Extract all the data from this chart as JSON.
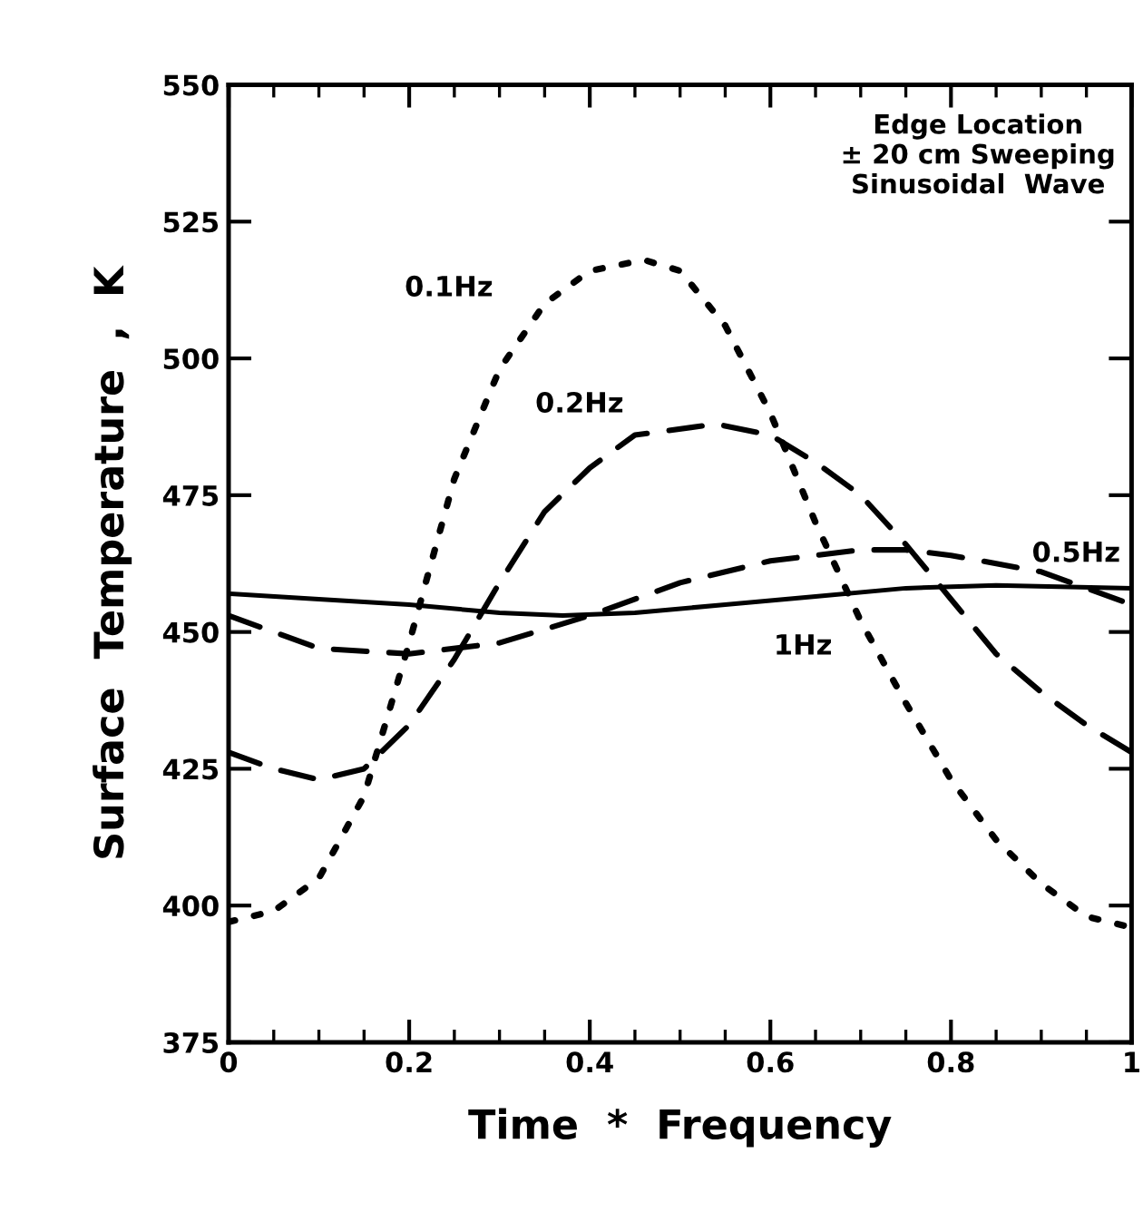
{
  "chart_data": {
    "type": "line",
    "xlabel": "Time  *  Frequency",
    "ylabel": "Surface  Temperature  ,  K",
    "xlim": [
      0,
      1
    ],
    "ylim": [
      375,
      550
    ],
    "xticks": [
      0,
      0.2,
      0.4,
      0.6,
      0.8,
      1
    ],
    "yticks": [
      375,
      400,
      425,
      450,
      475,
      500,
      525,
      550
    ],
    "grid": false,
    "series": [
      {
        "name": "0.1Hz",
        "color": "#000000",
        "line_style": "dotted",
        "x": [
          0,
          0.05,
          0.1,
          0.15,
          0.2,
          0.25,
          0.3,
          0.35,
          0.4,
          0.46,
          0.5,
          0.55,
          0.6,
          0.65,
          0.7,
          0.75,
          0.8,
          0.85,
          0.9,
          0.95,
          1
        ],
        "values": [
          397,
          399,
          405,
          420,
          448,
          478,
          498,
          510,
          516,
          518,
          516,
          506,
          490,
          470,
          452,
          437,
          423,
          412,
          404,
          398,
          396
        ]
      },
      {
        "name": "0.2Hz",
        "color": "#000000",
        "line_style": "dashed",
        "x": [
          0,
          0.05,
          0.1,
          0.15,
          0.2,
          0.25,
          0.3,
          0.35,
          0.4,
          0.45,
          0.54,
          0.6,
          0.65,
          0.7,
          0.75,
          0.8,
          0.85,
          0.9,
          0.95,
          1
        ],
        "values": [
          428,
          425,
          423,
          425,
          433,
          445,
          459,
          472,
          480,
          486,
          488,
          486,
          481,
          475,
          466,
          456,
          446,
          439,
          433,
          428
        ]
      },
      {
        "name": "0.5Hz",
        "color": "#000000",
        "line_style": "dashed",
        "x": [
          0,
          0.05,
          0.1,
          0.2,
          0.3,
          0.4,
          0.5,
          0.6,
          0.7,
          0.75,
          0.8,
          0.9,
          1
        ],
        "values": [
          453,
          450,
          447,
          446,
          448,
          453,
          459,
          463,
          465,
          465,
          464,
          461,
          455
        ]
      },
      {
        "name": "1Hz",
        "color": "#000000",
        "line_style": "solid",
        "x": [
          0,
          0.1,
          0.2,
          0.3,
          0.37,
          0.45,
          0.55,
          0.65,
          0.75,
          0.85,
          1
        ],
        "values": [
          457,
          456,
          455,
          453.5,
          453,
          453.5,
          455,
          456.5,
          458,
          458.5,
          458
        ]
      }
    ],
    "annotations": [
      "Edge Location\n± 20 cm Sweeping\nSinusoidal  Wave"
    ]
  }
}
